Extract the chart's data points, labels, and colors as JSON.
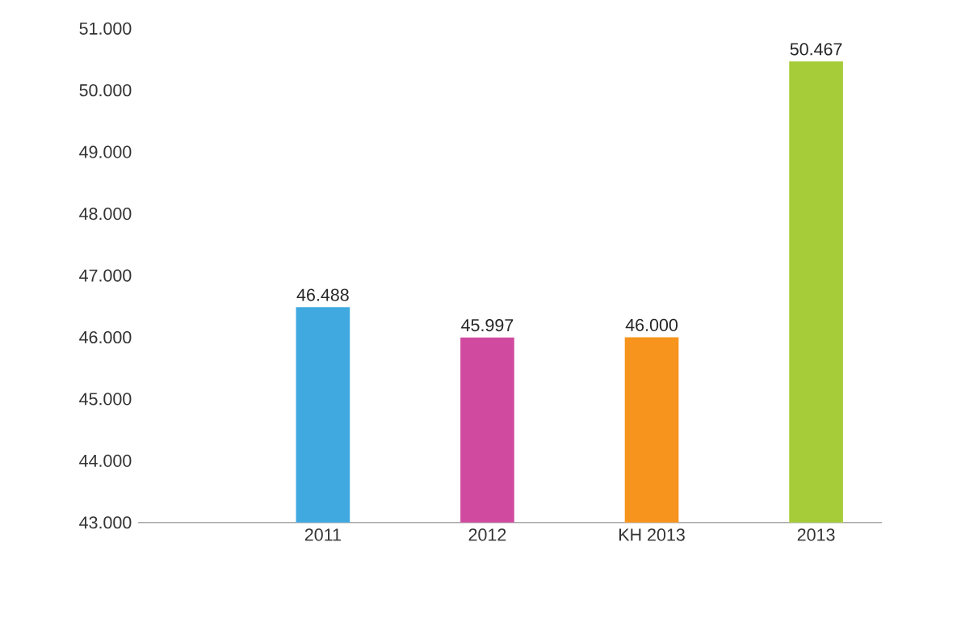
{
  "chart_data": {
    "type": "bar",
    "categories": [
      "2011",
      "2012",
      "KH 2013",
      "2013"
    ],
    "values": [
      46488,
      45997,
      46000,
      50467
    ],
    "value_labels": [
      "46.488",
      "45.997",
      "46.000",
      "50.467"
    ],
    "colors": [
      "#3fa9e0",
      "#d04aa0",
      "#f7941d",
      "#a6cc3a"
    ],
    "ylim": [
      43000,
      51000
    ],
    "yticks": [
      {
        "value": 43000,
        "label": "43.000"
      },
      {
        "value": 44000,
        "label": "44.000"
      },
      {
        "value": 45000,
        "label": "45.000"
      },
      {
        "value": 46000,
        "label": "46.000"
      },
      {
        "value": 47000,
        "label": "47.000"
      },
      {
        "value": 48000,
        "label": "48.000"
      },
      {
        "value": 49000,
        "label": "49.000"
      },
      {
        "value": 50000,
        "label": "50.000"
      },
      {
        "value": 51000,
        "label": "51.000"
      }
    ]
  }
}
